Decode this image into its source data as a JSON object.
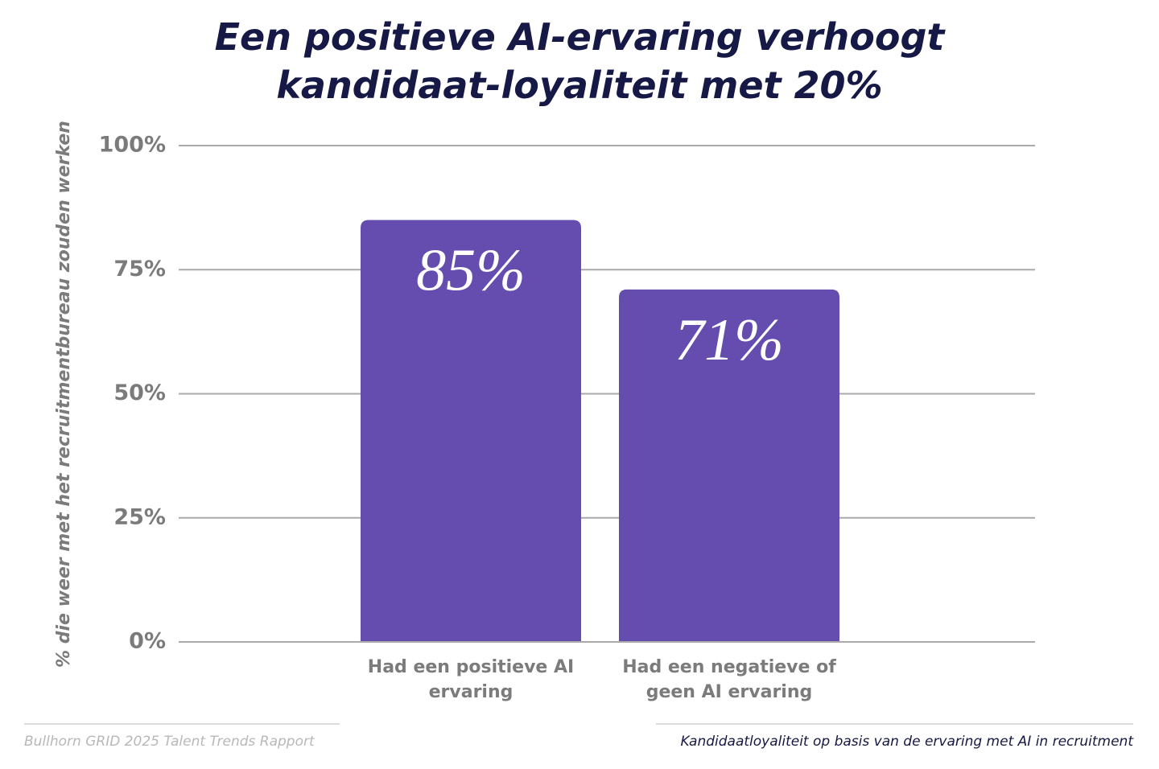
{
  "chart_data": {
    "type": "bar",
    "title": "Een positieve AI-ervaring verhoogt kandidaat-loyaliteit met 20%",
    "y_label": "% die weer met het recruitmentbureau zouden werken",
    "categories": [
      "Had een positieve AI ervaring",
      "Had een negatieve of geen AI ervaring"
    ],
    "values": [
      85,
      71
    ],
    "value_labels": [
      "85%",
      "71%"
    ],
    "color": "#654db0",
    "ylim": [
      0,
      100
    ],
    "yticks": [
      {
        "value": 0,
        "label": "0%"
      },
      {
        "value": 25,
        "label": "25%"
      },
      {
        "value": 50,
        "label": "50%"
      },
      {
        "value": 75,
        "label": "75%"
      },
      {
        "value": 100,
        "label": "100%"
      }
    ],
    "grid": true,
    "source": "Bullhorn GRID 2025 Talent Trends Rapport",
    "caption": "Kandidaatloyaliteit op basis van de ervaring met AI in recruitment"
  }
}
